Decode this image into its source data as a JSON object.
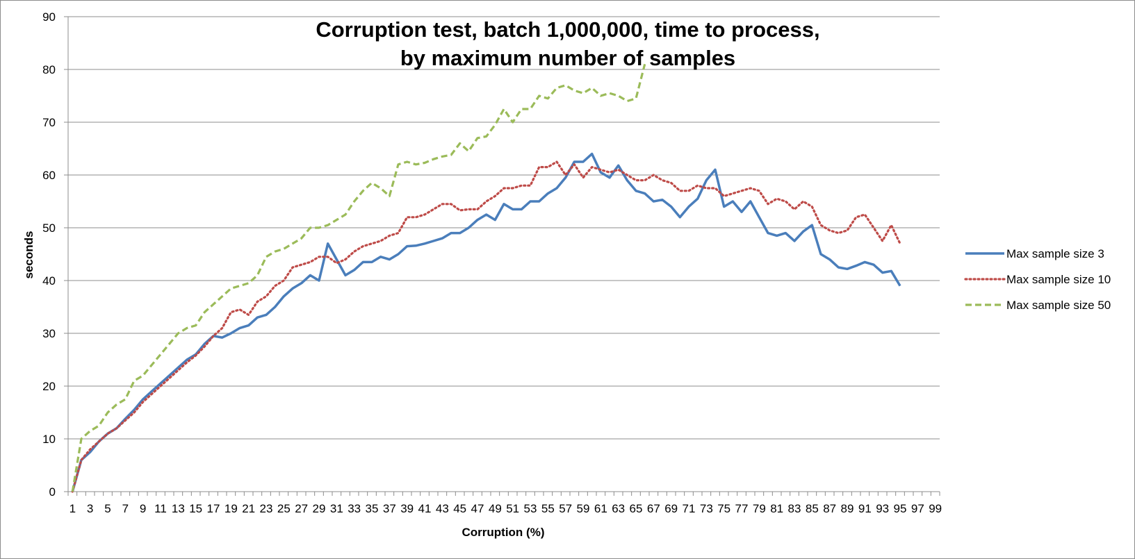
{
  "chart_data": {
    "type": "line",
    "title_lines": [
      "Corruption test, batch 1,000,000, time to process,",
      "by maximum number of samples"
    ],
    "xlabel": "Corruption  (%)",
    "ylabel": "seconds",
    "x_categories": [
      1,
      2,
      3,
      4,
      5,
      6,
      7,
      8,
      9,
      10,
      11,
      12,
      13,
      14,
      15,
      16,
      17,
      18,
      19,
      20,
      21,
      22,
      23,
      24,
      25,
      26,
      27,
      28,
      29,
      30,
      31,
      32,
      33,
      34,
      35,
      36,
      37,
      38,
      39,
      40,
      41,
      42,
      43,
      44,
      45,
      46,
      47,
      48,
      49,
      50,
      51,
      52,
      53,
      54,
      55,
      56,
      57,
      58,
      59,
      60,
      61,
      62,
      63,
      64,
      65,
      66,
      67,
      68,
      69,
      70,
      71,
      72,
      73,
      74,
      75,
      76,
      77,
      78,
      79,
      80,
      81,
      82,
      83,
      84,
      85,
      86,
      87,
      88,
      89,
      90,
      91,
      92,
      93,
      94,
      95,
      96,
      97,
      98,
      99
    ],
    "x_tick_labels": [
      "1",
      "3",
      "5",
      "7",
      "9",
      "11",
      "13",
      "15",
      "17",
      "19",
      "21",
      "23",
      "25",
      "27",
      "29",
      "31",
      "33",
      "35",
      "37",
      "39",
      "41",
      "43",
      "45",
      "47",
      "49",
      "51",
      "53",
      "55",
      "57",
      "59",
      "61",
      "63",
      "65",
      "67",
      "69",
      "71",
      "73",
      "75",
      "77",
      "79",
      "81",
      "83",
      "85",
      "87",
      "89",
      "91",
      "93",
      "95",
      "97",
      "99"
    ],
    "ylim": [
      0,
      90
    ],
    "y_ticks": [
      "0",
      "10",
      "20",
      "30",
      "40",
      "50",
      "60",
      "70",
      "80",
      "90"
    ],
    "grid": "horizontal",
    "legend_position": "right",
    "series": [
      {
        "name": "Max sample size 3",
        "color": "#4a7ebb",
        "dash": "solid",
        "x_start": 1,
        "values": [
          0,
          6,
          7.5,
          9.5,
          11,
          12,
          13.8,
          15.5,
          17.5,
          19,
          20.5,
          22,
          23.5,
          25,
          26,
          28,
          29.5,
          29.2,
          30,
          31,
          31.5,
          33,
          33.5,
          35,
          37,
          38.5,
          39.5,
          41,
          40,
          47,
          44,
          41,
          42,
          43.5,
          43.5,
          44.5,
          44,
          45,
          46.5,
          46.6,
          47,
          47.5,
          48,
          49,
          49,
          50,
          51.5,
          52.5,
          51.5,
          54.5,
          53.5,
          53.5,
          55,
          55,
          56.5,
          57.5,
          59.5,
          62.5,
          62.5,
          64,
          60.5,
          59.5,
          61.8,
          59,
          57,
          56.5,
          55,
          55.3,
          54,
          52,
          54,
          55.5,
          59,
          61,
          54,
          55,
          53,
          55,
          52,
          49,
          48.5,
          49,
          47.5,
          49.3,
          50.5,
          45,
          44,
          42.5,
          42.2,
          42.8,
          43.5,
          43,
          41.5,
          41.8,
          39
        ]
      },
      {
        "name": "Max sample size 10",
        "color": "#be4b48",
        "dash": "dotted",
        "x_start": 1,
        "values": [
          0,
          6,
          8,
          9.5,
          11,
          12,
          13.5,
          15,
          17,
          18.5,
          20,
          21.5,
          23,
          24.5,
          25.8,
          27.5,
          29.5,
          31,
          34,
          34.5,
          33.5,
          36,
          37,
          39,
          40,
          42.5,
          43,
          43.5,
          44.5,
          44.5,
          43.3,
          44,
          45.5,
          46.5,
          47,
          47.5,
          48.5,
          49,
          52,
          52,
          52.5,
          53.5,
          54.5,
          54.5,
          53.3,
          53.5,
          53.5,
          55,
          56,
          57.5,
          57.5,
          58,
          58,
          61.5,
          61.5,
          62.5,
          60,
          62,
          59.5,
          61.5,
          61,
          60.5,
          61,
          60,
          59,
          59,
          60,
          59,
          58.5,
          57,
          57,
          58,
          57.5,
          57.5,
          56,
          56.5,
          57,
          57.5,
          57,
          54.5,
          55.5,
          55,
          53.5,
          55,
          54,
          50.5,
          49.5,
          49,
          49.5,
          52,
          52.5,
          50,
          47.5,
          50.5,
          47
        ]
      },
      {
        "name": "Max sample size 50",
        "color": "#9bbb59",
        "dash": "dashed",
        "x_start": 1,
        "values": [
          0,
          10,
          11.5,
          12.5,
          15,
          16.5,
          17.5,
          21,
          22,
          24,
          26,
          28,
          30,
          31,
          31.5,
          34,
          35.5,
          37,
          38.5,
          39,
          39.5,
          41,
          44.5,
          45.5,
          46,
          47,
          48,
          50,
          50,
          50.5,
          51.5,
          52.5,
          55,
          57,
          58.5,
          57.5,
          56,
          62,
          62.5,
          62,
          62.3,
          63,
          63.5,
          63.8,
          66,
          64.5,
          67,
          67.3,
          69.5,
          72.5,
          70,
          72.5,
          72.5,
          75,
          74.5,
          76.5,
          77,
          76,
          75.5,
          76.5,
          75,
          75.5,
          75,
          74,
          74.5,
          81
        ]
      }
    ]
  }
}
